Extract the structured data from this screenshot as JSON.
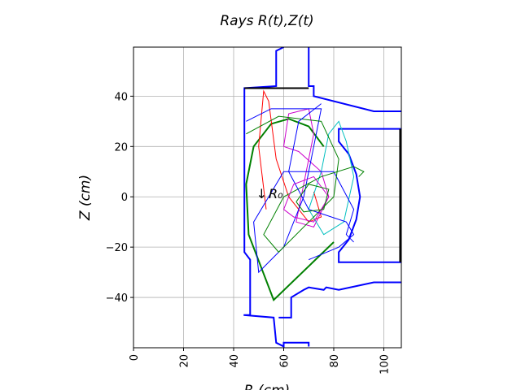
{
  "chart_data": {
    "type": "line",
    "title": "Rays  R(t),Z(t)",
    "xlabel": "R  (cm)",
    "ylabel": "Z  (cm)",
    "annotations": [
      {
        "text": "↓",
        "x": 49,
        "y": 1
      },
      {
        "text": "R₀",
        "x": 54,
        "y": 1
      }
    ],
    "xlim": [
      0,
      107
    ],
    "ylim": [
      -60,
      59.5
    ],
    "xticks": [
      0,
      20,
      40,
      60,
      80,
      100
    ],
    "yticks": [
      {
        "value": -40,
        "label": "−40"
      },
      {
        "value": -20,
        "label": "−20"
      },
      0,
      20,
      40
    ],
    "grid": true,
    "series": [
      {
        "color": "#0000ff",
        "width": 2,
        "x": [
          60,
          57,
          57,
          44.3,
          44.3,
          46.6,
          46.6,
          44,
          56,
          57,
          60,
          60,
          70,
          70
        ],
        "values": [
          59.5,
          58,
          44,
          43.2,
          -22,
          -25,
          -47,
          -47,
          -48,
          -58,
          -59.5,
          -58,
          -58,
          -59.5
        ]
      },
      {
        "color": "#0000ff",
        "width": 2,
        "x": [
          70,
          70,
          72,
          72,
          96,
          107
        ],
        "values": [
          59.5,
          44,
          44,
          40,
          34,
          34
        ]
      },
      {
        "color": "#0000ff",
        "width": 2,
        "x": [
          107,
          82,
          82,
          86,
          89,
          90.5,
          89,
          86,
          82,
          82,
          107
        ],
        "values": [
          27,
          27,
          22,
          17,
          9,
          0,
          -9,
          -17,
          -22,
          -26,
          -26
        ]
      },
      {
        "color": "#0000ff",
        "width": 2,
        "x": [
          107,
          96,
          82,
          77,
          76,
          70,
          68,
          63,
          63,
          58
        ],
        "values": [
          -34,
          -34,
          -37,
          -36,
          -37,
          -36,
          -37,
          -40,
          -48,
          -48
        ]
      },
      {
        "color": "#000000",
        "width": 2,
        "x": [
          44.3,
          70
        ],
        "values": [
          43.2,
          43.2
        ]
      },
      {
        "color": "#000000",
        "width": 2,
        "x": [
          106.5,
          106.5
        ],
        "values": [
          27,
          -26
        ]
      },
      {
        "color": "#008000",
        "width": 2,
        "x": [
          80,
          56,
          46,
          45,
          48,
          55,
          62,
          70,
          76
        ],
        "values": [
          -18,
          -41,
          -15,
          5,
          20,
          29,
          31,
          28,
          20
        ]
      },
      {
        "color": "#ff0000",
        "width": 1,
        "x": [
          53,
          50,
          52,
          54,
          57,
          62,
          70,
          75,
          72
        ],
        "values": [
          -5,
          20,
          42,
          38,
          15,
          0,
          -10,
          -8,
          2
        ]
      },
      {
        "color": "#cc00cc",
        "width": 1,
        "x": [
          60,
          62,
          70,
          72,
          68,
          65,
          72,
          78,
          75,
          66,
          60
        ],
        "values": [
          20,
          33,
          35,
          25,
          5,
          -10,
          -12,
          0,
          10,
          18,
          20
        ]
      },
      {
        "color": "#00bfbf",
        "width": 1,
        "x": [
          70,
          75,
          78,
          82,
          85,
          88,
          84,
          76,
          70
        ],
        "values": [
          -5,
          10,
          25,
          30,
          22,
          8,
          -10,
          -15,
          -5
        ]
      },
      {
        "color": "#0000ff",
        "width": 1,
        "x": [
          45,
          55,
          75,
          72,
          68,
          60,
          50,
          48,
          60,
          80,
          88,
          85,
          88
        ],
        "values": [
          30,
          35,
          35,
          20,
          0,
          -20,
          -30,
          -10,
          10,
          10,
          -5,
          -15,
          -18
        ]
      },
      {
        "color": "#008000",
        "width": 1,
        "x": [
          45,
          58,
          75,
          82,
          80,
          70,
          58,
          52,
          60,
          75,
          88,
          92,
          90
        ],
        "values": [
          25,
          32,
          30,
          15,
          0,
          -10,
          -22,
          -15,
          0,
          8,
          12,
          10,
          8
        ]
      },
      {
        "color": "#0000ff",
        "width": 1,
        "x": [
          75,
          66,
          62,
          70,
          85,
          88,
          82,
          70
        ],
        "values": [
          37,
          30,
          10,
          -5,
          -10,
          -15,
          -20,
          -25
        ]
      },
      {
        "color": "#cc00cc",
        "width": 1,
        "x": [
          60,
          64,
          72,
          78,
          72,
          64,
          60
        ],
        "values": [
          -5,
          5,
          8,
          0,
          -10,
          -8,
          -5
        ]
      },
      {
        "color": "#008000",
        "width": 1,
        "x": [
          65,
          70,
          78,
          76,
          68,
          65
        ],
        "values": [
          -2,
          5,
          3,
          -5,
          -6,
          -2
        ]
      }
    ]
  }
}
